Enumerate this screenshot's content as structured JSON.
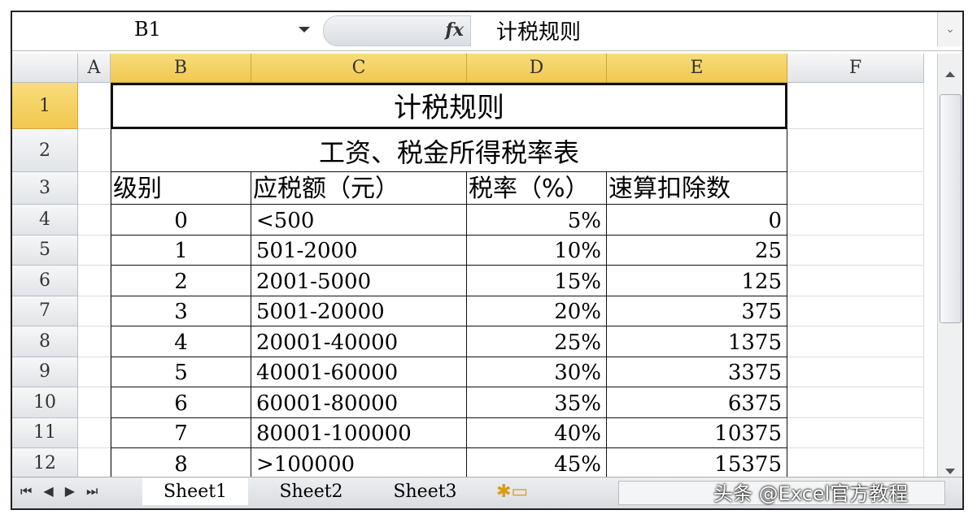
{
  "formula_bar": {
    "name_box": "B1",
    "fx_label": "fx",
    "content": "计税规则"
  },
  "columns": [
    "A",
    "B",
    "C",
    "D",
    "E",
    "F"
  ],
  "rows": [
    "1",
    "2",
    "3",
    "4",
    "5",
    "6",
    "7",
    "8",
    "9",
    "10",
    "11",
    "12"
  ],
  "sheet": {
    "title": "计税规则",
    "subtitle": "工资、税金所得税率表",
    "headers": [
      "级别",
      "应税额（元）",
      "税率（%）",
      "速算扣除数"
    ],
    "data": [
      [
        "0",
        "<500",
        "5%",
        "0"
      ],
      [
        "1",
        "501-2000",
        "10%",
        "25"
      ],
      [
        "2",
        "2001-5000",
        "15%",
        "125"
      ],
      [
        "3",
        "5001-20000",
        "20%",
        "375"
      ],
      [
        "4",
        "20001-40000",
        "25%",
        "1375"
      ],
      [
        "5",
        "40001-60000",
        "30%",
        "3375"
      ],
      [
        "6",
        "60001-80000",
        "35%",
        "6375"
      ],
      [
        "7",
        "80001-100000",
        "40%",
        "10375"
      ],
      [
        "8",
        ">100000",
        "45%",
        "15375"
      ]
    ]
  },
  "tabs": [
    "Sheet1",
    "Sheet2",
    "Sheet3"
  ],
  "watermark": "头条 @Excel官方教程"
}
